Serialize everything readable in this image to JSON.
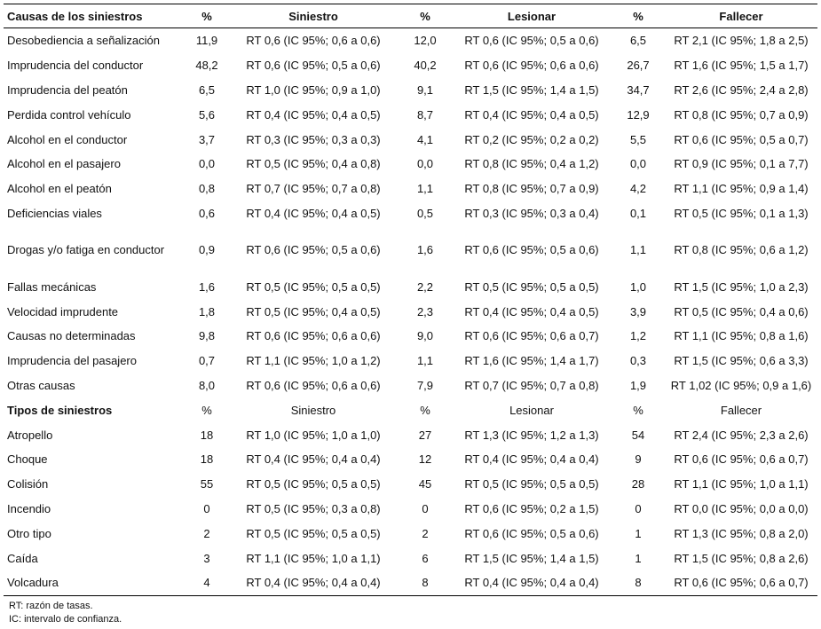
{
  "header": [
    "Causas de los siniestros",
    "%",
    "Siniestro",
    "%",
    "Lesionar",
    "%",
    "Fallecer"
  ],
  "causes": [
    [
      "Desobediencia a señalización",
      "11,9",
      "RT 0,6 (IC 95%; 0,6 a 0,6)",
      "12,0",
      "RT 0,6 (IC 95%; 0,5 a 0,6)",
      "6,5",
      "RT 2,1 (IC 95%; 1,8 a 2,5)"
    ],
    [
      "Imprudencia del conductor",
      "48,2",
      "RT 0,6 (IC 95%; 0,5 a 0,6)",
      "40,2",
      "RT 0,6 (IC 95%; 0,6 a 0,6)",
      "26,7",
      "RT 1,6 (IC 95%; 1,5 a 1,7)"
    ],
    [
      "Imprudencia del peatón",
      "6,5",
      "RT 1,0 (IC 95%; 0,9 a 1,0)",
      "9,1",
      "RT 1,5 (IC 95%; 1,4 a 1,5)",
      "34,7",
      "RT 2,6 (IC 95%; 2,4 a 2,8)"
    ],
    [
      "Perdida control vehículo",
      "5,6",
      "RT 0,4 (IC 95%; 0,4 a 0,5)",
      "8,7",
      "RT 0,4 (IC 95%; 0,4 a 0,5)",
      "12,9",
      "RT 0,8 (IC 95%; 0,7 a 0,9)"
    ],
    [
      "Alcohol en el conductor",
      "3,7",
      "RT 0,3 (IC 95%; 0,3 a 0,3)",
      "4,1",
      "RT 0,2 (IC 95%; 0,2 a 0,2)",
      "5,5",
      "RT 0,6 (IC 95%; 0,5 a 0,7)"
    ],
    [
      "Alcohol en el pasajero",
      "0,0",
      "RT 0,5 (IC 95%; 0,4 a 0,8)",
      "0,0",
      "RT 0,8 (IC 95%; 0,4 a 1,2)",
      "0,0",
      "RT 0,9 (IC 95%; 0,1 a 7,7)"
    ],
    [
      "Alcohol en el peatón",
      "0,8",
      "RT 0,7 (IC 95%; 0,7 a 0,8)",
      "1,1",
      "RT 0,8 (IC 95%; 0,7 a 0,9)",
      "4,2",
      "RT 1,1 (IC 95%; 0,9 a 1,4)"
    ],
    [
      "Deficiencias viales",
      "0,6",
      "RT 0,4 (IC 95%; 0,4 a 0,5)",
      "0,5",
      "RT 0,3 (IC 95%; 0,3 a 0,4)",
      "0,1",
      "RT 0,5 (IC 95%; 0,1 a 1,3)"
    ],
    [
      "Drogas y/o fatiga en conductor",
      "0,9",
      "RT 0,6 (IC 95%; 0,5 a 0,6)",
      "1,6",
      "RT 0,6 (IC 95%; 0,5 a 0,6)",
      "1,1",
      "RT 0,8 (IC 95%; 0,6 a 1,2)"
    ],
    [
      "Fallas mecánicas",
      "1,6",
      "RT 0,5 (IC 95%; 0,5 a 0,5)",
      "2,2",
      "RT 0,5 (IC 95%; 0,5 a 0,5)",
      "1,0",
      "RT 1,5 (IC 95%; 1,0 a 2,3)"
    ],
    [
      "Velocidad imprudente",
      "1,8",
      "RT 0,5 (IC 95%; 0,4 a 0,5)",
      "2,3",
      "RT 0,4 (IC 95%; 0,4 a 0,5)",
      "3,9",
      "RT 0,5 (IC 95%; 0,4 a 0,6)"
    ],
    [
      "Causas no determinadas",
      "9,8",
      "RT 0,6 (IC 95%; 0,6 a 0,6)",
      "9,0",
      "RT 0,6 (IC 95%; 0,6 a 0,7)",
      "1,2",
      "RT 1,1 (IC 95%; 0,8 a 1,6)"
    ],
    [
      "Imprudencia del pasajero",
      "0,7",
      "RT 1,1 (IC 95%; 1,0 a 1,2)",
      "1,1",
      "RT 1,6 (IC 95%; 1,4 a 1,7)",
      "0,3",
      "RT 1,5 (IC 95%; 0,6 a 3,3)"
    ],
    [
      "Otras causas",
      "8,0",
      "RT 0,6 (IC 95%; 0,6 a 0,6)",
      "7,9",
      "RT 0,7 (IC 95%; 0,7 a 0,8)",
      "1,9",
      "RT 1,02 (IC 95%; 0,9 a 1,6)"
    ]
  ],
  "types_header": [
    "Tipos de siniestros",
    "%",
    "Siniestro",
    "%",
    "Lesionar",
    "%",
    "Fallecer"
  ],
  "types": [
    [
      "Atropello",
      "18",
      "RT 1,0 (IC 95%; 1,0 a 1,0)",
      "27",
      "RT 1,3 (IC 95%; 1,2 a 1,3)",
      "54",
      "RT 2,4 (IC 95%; 2,3 a 2,6)"
    ],
    [
      "Choque",
      "18",
      "RT 0,4 (IC 95%; 0,4 a 0,4)",
      "12",
      "RT 0,4 (IC 95%; 0,4 a 0,4)",
      "9",
      "RT 0,6 (IC 95%; 0,6 a 0,7)"
    ],
    [
      "Colisión",
      "55",
      "RT 0,5 (IC 95%; 0,5 a 0,5)",
      "45",
      "RT 0,5 (IC 95%; 0,5 a 0,5)",
      "28",
      "RT 1,1 (IC 95%; 1,0 a 1,1)"
    ],
    [
      "Incendio",
      "0",
      "RT 0,5 (IC 95%; 0,3 a 0,8)",
      "0",
      "RT 0,6 (IC 95%; 0,2 a 1,5)",
      "0",
      "RT 0,0 (IC 95%; 0,0 a 0,0)"
    ],
    [
      "Otro tipo",
      "2",
      "RT 0,5 (IC 95%; 0,5 a 0,5)",
      "2",
      "RT 0,6 (IC 95%; 0,5 a 0,6)",
      "1",
      "RT 1,3 (IC 95%; 0,8 a 2,0)"
    ],
    [
      "Caída",
      "3",
      "RT 1,1 (IC 95%; 1,0 a 1,1)",
      "6",
      "RT 1,5 (IC 95%; 1,4 a 1,5)",
      "1",
      "RT 1,5 (IC 95%; 0,8 a 2,6)"
    ],
    [
      "Volcadura",
      "4",
      "RT 0,4 (IC 95%; 0,4 a 0,4)",
      "8",
      "RT 0,4 (IC 95%; 0,4 a 0,4)",
      "8",
      "RT 0,6 (IC 95%; 0,6 a 0,7)"
    ]
  ],
  "notes": [
    "RT: razón de tasas.",
    "IC: intervalo de confianza."
  ]
}
